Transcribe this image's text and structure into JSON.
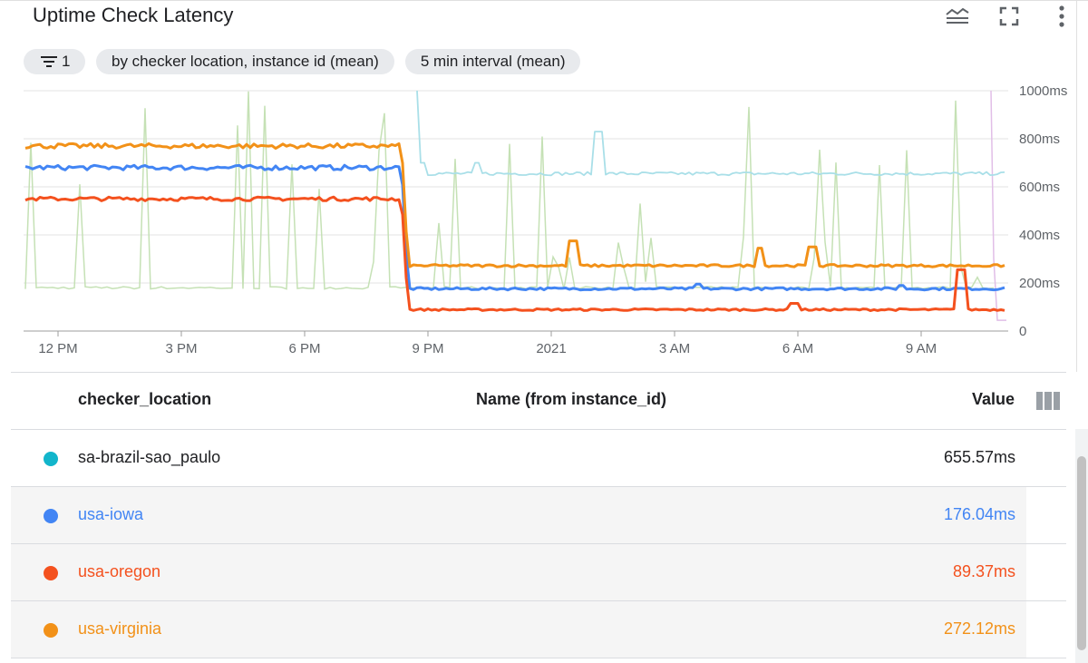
{
  "header": {
    "title": "Uptime Check Latency",
    "icons": [
      "legend-toggle-icon",
      "fullscreen-icon",
      "more-vert-icon"
    ]
  },
  "chips": {
    "filter_count": "1",
    "group_by": "by checker location, instance id (mean)",
    "interval": "5 min interval (mean)"
  },
  "chart_data": {
    "type": "line",
    "x_ticks": [
      "12 PM",
      "3 PM",
      "6 PM",
      "9 PM",
      "2021",
      "3 AM",
      "6 AM",
      "9 AM"
    ],
    "y_ticks": [
      "1000ms",
      "800ms",
      "600ms",
      "400ms",
      "200ms",
      "0"
    ],
    "ylim": [
      0,
      1000
    ],
    "grid": true,
    "series": [
      {
        "name": "sa-brazil-sao_paulo",
        "color": "#12b5cb",
        "highlighted": false,
        "approx_before": null,
        "approx_after": 655
      },
      {
        "name": "usa-iowa",
        "color": "#4285f4",
        "highlighted": true,
        "approx_before": 680,
        "approx_after": 176
      },
      {
        "name": "usa-oregon",
        "color": "#f4511e",
        "highlighted": true,
        "approx_before": 550,
        "approx_after": 89
      },
      {
        "name": "usa-virginia",
        "color": "#f29118",
        "highlighted": true,
        "approx_before": 770,
        "approx_after": 272
      }
    ]
  },
  "table": {
    "headers": {
      "location": "checker_location",
      "name": "Name (from instance_id)",
      "value": "Value"
    },
    "rows": [
      {
        "location": "sa-brazil-sao_paulo",
        "name": "",
        "value": "655.57ms",
        "dot_color": "#12b5cb",
        "text_color": "#202124",
        "shaded": false
      },
      {
        "location": "usa-iowa",
        "name": "",
        "value": "176.04ms",
        "dot_color": "#4285f4",
        "text_color": "#4285f4",
        "shaded": true
      },
      {
        "location": "usa-oregon",
        "name": "",
        "value": "89.37ms",
        "dot_color": "#f4511e",
        "text_color": "#f4511e",
        "shaded": true
      },
      {
        "location": "usa-virginia",
        "name": "",
        "value": "272.12ms",
        "dot_color": "#f29118",
        "text_color": "#f29118",
        "shaded": true
      }
    ]
  }
}
